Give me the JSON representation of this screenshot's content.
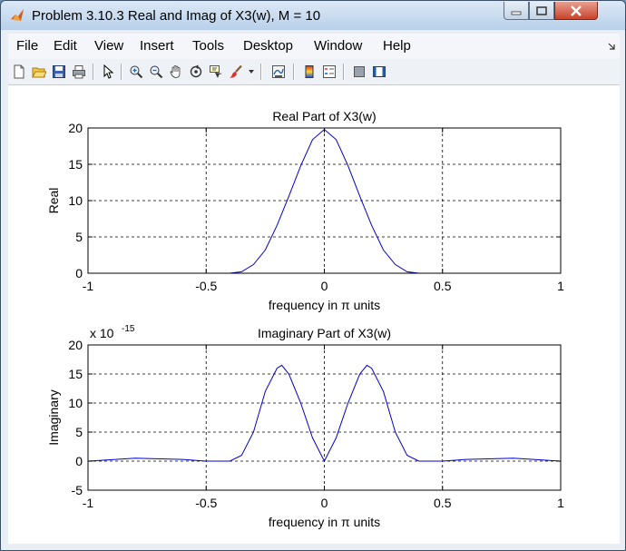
{
  "window": {
    "title": "Problem 3.10.3 Real and Imag of X3(w), M = 10"
  },
  "menu": [
    "File",
    "Edit",
    "View",
    "Insert",
    "Tools",
    "Desktop",
    "Window",
    "Help"
  ],
  "toolbar_icons": [
    "new-figure-icon",
    "open-file-icon",
    "save-icon",
    "print-icon",
    "select-arrow-icon",
    "zoom-in-icon",
    "zoom-out-icon",
    "pan-hand-icon",
    "rotate-3d-icon",
    "data-cursor-icon",
    "brush-icon",
    "brush-dropdown-icon",
    "link-plot-icon",
    "insert-colorbar-icon",
    "insert-legend-icon",
    "hide-plot-tools-icon",
    "show-plot-tools-icon"
  ],
  "colors": {
    "line": "#0000cc",
    "axes": "#000000",
    "grid": "#000000",
    "background": "#ffffff"
  },
  "chart_data": [
    {
      "type": "line",
      "title": "Real Part of X3(w)",
      "xlabel": "frequency in π units",
      "ylabel": "Real",
      "xlim": [
        -1,
        1
      ],
      "ylim": [
        0,
        20
      ],
      "xticks": [
        "-1",
        "-0.5",
        "0",
        "0.5",
        "1"
      ],
      "yticks": [
        "0",
        "5",
        "10",
        "15",
        "20"
      ],
      "grid": true,
      "exponent_label": "",
      "series": [
        {
          "x": [
            -1,
            -0.5,
            -0.4,
            -0.35,
            -0.3,
            -0.25,
            -0.2,
            -0.15,
            -0.1,
            -0.05,
            0,
            0.05,
            0.1,
            0.15,
            0.2,
            0.25,
            0.3,
            0.35,
            0.4,
            0.5,
            1
          ],
          "y": [
            0,
            0,
            0,
            0.2,
            1.2,
            3.2,
            6.6,
            10.6,
            14.8,
            18.4,
            19.8,
            18.4,
            14.8,
            10.6,
            6.6,
            3.2,
            1.2,
            0.2,
            0,
            0,
            0
          ]
        }
      ]
    },
    {
      "type": "line",
      "title": "Imaginary Part of X3(w)",
      "xlabel": "frequency in π units",
      "ylabel": "Imaginary",
      "xlim": [
        -1,
        1
      ],
      "ylim": [
        -5,
        20
      ],
      "xticks": [
        "-1",
        "-0.5",
        "0",
        "0.5",
        "1"
      ],
      "yticks": [
        "-5",
        "0",
        "5",
        "10",
        "15",
        "20"
      ],
      "grid": true,
      "exponent_label": "x 10",
      "exponent_power": "-15",
      "series": [
        {
          "x": [
            -1,
            -0.8,
            -0.6,
            -0.5,
            -0.4,
            -0.35,
            -0.3,
            -0.25,
            -0.2,
            -0.18,
            -0.15,
            -0.1,
            -0.05,
            0,
            0.05,
            0.1,
            0.15,
            0.18,
            0.2,
            0.25,
            0.3,
            0.35,
            0.4,
            0.5,
            0.6,
            0.8,
            1
          ],
          "y": [
            0,
            0.5,
            0.3,
            0,
            0,
            1,
            5,
            12,
            16,
            16.5,
            15,
            10,
            4,
            0,
            4,
            10,
            15,
            16.5,
            16,
            12,
            5,
            1,
            0,
            0,
            0.3,
            0.5,
            0
          ]
        }
      ]
    }
  ]
}
